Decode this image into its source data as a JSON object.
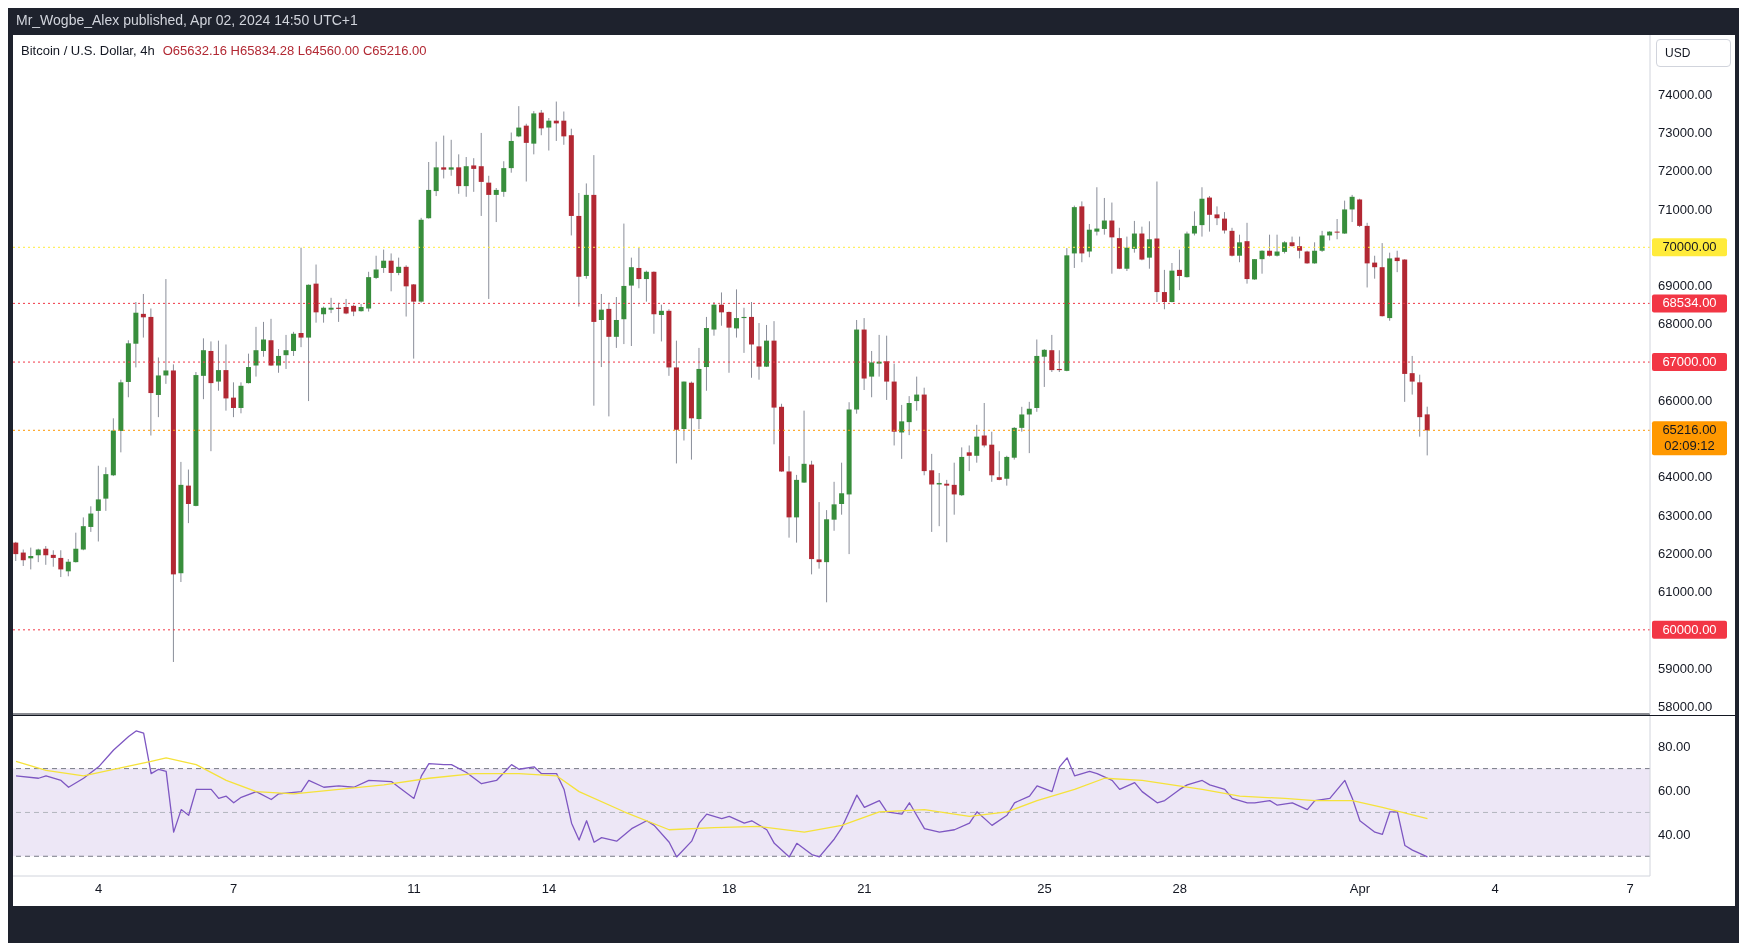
{
  "chart_data": [
    {
      "type": "candlestick",
      "title": "Bitcoin / U.S. Dollar, 4h",
      "annotations": [
        "Mr_Wogbe_Alex published, Apr 02, 2024 14:50 UTC+1",
        "O65632.16 H65834.28 L64560.00 C65216.00",
        "USD",
        "02:09:12"
      ],
      "x": [
        "2024-03-02T04:00",
        "2024-03-02T08:00",
        "2024-03-02T12:00",
        "2024-03-02T16:00",
        "2024-03-02T20:00",
        "2024-03-03T00:00",
        "2024-03-03T04:00",
        "2024-03-03T08:00",
        "2024-03-03T12:00",
        "2024-03-03T16:00",
        "2024-03-03T20:00",
        "2024-03-04T00:00",
        "2024-03-04T04:00",
        "2024-03-04T08:00",
        "2024-03-04T12:00",
        "2024-03-04T16:00",
        "2024-03-04T20:00",
        "2024-03-05T00:00",
        "2024-03-05T04:00",
        "2024-03-05T08:00",
        "2024-03-05T12:00",
        "2024-03-05T16:00",
        "2024-03-05T20:00",
        "2024-03-06T00:00",
        "2024-03-06T04:00",
        "2024-03-06T08:00",
        "2024-03-06T12:00",
        "2024-03-06T16:00",
        "2024-03-06T20:00",
        "2024-03-07T00:00",
        "2024-03-07T04:00",
        "2024-03-07T08:00",
        "2024-03-07T12:00",
        "2024-03-07T16:00",
        "2024-03-07T20:00",
        "2024-03-08T00:00",
        "2024-03-08T04:00",
        "2024-03-08T08:00",
        "2024-03-08T12:00",
        "2024-03-08T16:00",
        "2024-03-08T20:00",
        "2024-03-09T00:00",
        "2024-03-09T04:00",
        "2024-03-09T08:00",
        "2024-03-09T12:00",
        "2024-03-09T16:00",
        "2024-03-09T20:00",
        "2024-03-10T00:00",
        "2024-03-10T04:00",
        "2024-03-10T08:00",
        "2024-03-10T12:00",
        "2024-03-10T16:00",
        "2024-03-10T20:00",
        "2024-03-11T00:00",
        "2024-03-11T04:00",
        "2024-03-11T08:00",
        "2024-03-11T12:00",
        "2024-03-11T16:00",
        "2024-03-11T20:00",
        "2024-03-12T00:00",
        "2024-03-12T04:00",
        "2024-03-12T08:00",
        "2024-03-12T12:00",
        "2024-03-12T16:00",
        "2024-03-12T20:00",
        "2024-03-13T00:00",
        "2024-03-13T04:00",
        "2024-03-13T08:00",
        "2024-03-13T12:00",
        "2024-03-13T16:00",
        "2024-03-13T20:00",
        "2024-03-14T00:00",
        "2024-03-14T04:00",
        "2024-03-14T08:00",
        "2024-03-14T12:00",
        "2024-03-14T16:00",
        "2024-03-14T20:00",
        "2024-03-15T00:00",
        "2024-03-15T04:00",
        "2024-03-15T08:00",
        "2024-03-15T12:00",
        "2024-03-15T16:00",
        "2024-03-15T20:00",
        "2024-03-16T00:00",
        "2024-03-16T04:00",
        "2024-03-16T08:00",
        "2024-03-16T12:00",
        "2024-03-16T16:00",
        "2024-03-16T20:00",
        "2024-03-17T00:00",
        "2024-03-17T04:00",
        "2024-03-17T08:00",
        "2024-03-17T12:00",
        "2024-03-17T16:00",
        "2024-03-17T20:00",
        "2024-03-18T00:00",
        "2024-03-18T04:00",
        "2024-03-18T08:00",
        "2024-03-18T12:00",
        "2024-03-18T16:00",
        "2024-03-18T20:00",
        "2024-03-19T00:00",
        "2024-03-19T04:00",
        "2024-03-19T08:00",
        "2024-03-19T12:00",
        "2024-03-19T16:00",
        "2024-03-19T20:00",
        "2024-03-20T00:00",
        "2024-03-20T04:00",
        "2024-03-20T08:00",
        "2024-03-20T12:00",
        "2024-03-20T16:00",
        "2024-03-20T20:00",
        "2024-03-21T00:00",
        "2024-03-21T04:00",
        "2024-03-21T08:00",
        "2024-03-21T12:00",
        "2024-03-21T16:00",
        "2024-03-21T20:00",
        "2024-03-22T00:00",
        "2024-03-22T04:00",
        "2024-03-22T08:00",
        "2024-03-22T12:00",
        "2024-03-22T16:00",
        "2024-03-22T20:00",
        "2024-03-23T00:00",
        "2024-03-23T04:00",
        "2024-03-23T08:00",
        "2024-03-23T12:00",
        "2024-03-23T16:00",
        "2024-03-23T20:00",
        "2024-03-24T00:00",
        "2024-03-24T04:00",
        "2024-03-24T08:00",
        "2024-03-24T12:00",
        "2024-03-24T16:00",
        "2024-03-24T20:00",
        "2024-03-25T00:00",
        "2024-03-25T04:00",
        "2024-03-25T08:00",
        "2024-03-25T12:00",
        "2024-03-25T16:00",
        "2024-03-25T20:00",
        "2024-03-26T00:00",
        "2024-03-26T04:00",
        "2024-03-26T08:00",
        "2024-03-26T12:00",
        "2024-03-26T16:00",
        "2024-03-26T20:00",
        "2024-03-27T00:00",
        "2024-03-27T04:00",
        "2024-03-27T08:00",
        "2024-03-27T12:00",
        "2024-03-27T16:00",
        "2024-03-27T20:00",
        "2024-03-28T00:00",
        "2024-03-28T04:00",
        "2024-03-28T08:00",
        "2024-03-28T12:00",
        "2024-03-28T16:00",
        "2024-03-28T20:00",
        "2024-03-29T00:00",
        "2024-03-29T04:00",
        "2024-03-29T08:00",
        "2024-03-29T12:00",
        "2024-03-29T16:00",
        "2024-03-29T20:00",
        "2024-03-30T00:00",
        "2024-03-30T04:00",
        "2024-03-30T08:00",
        "2024-03-30T12:00",
        "2024-03-30T16:00",
        "2024-03-30T20:00",
        "2024-03-31T00:00",
        "2024-03-31T04:00",
        "2024-03-31T08:00",
        "2024-03-31T12:00",
        "2024-03-31T16:00",
        "2024-03-31T20:00",
        "2024-04-01T00:00",
        "2024-04-01T04:00",
        "2024-04-01T08:00",
        "2024-04-01T12:00",
        "2024-04-01T16:00",
        "2024-04-01T20:00",
        "2024-04-02T00:00",
        "2024-04-02T04:00",
        "2024-04-02T08:00",
        "2024-04-02T12:00"
      ],
      "ohlc": [
        [
          62280,
          62300,
          61800,
          61980
        ],
        [
          62020,
          62100,
          61670,
          61820
        ],
        [
          61870,
          62150,
          61580,
          61930
        ],
        [
          61950,
          62120,
          61770,
          62100
        ],
        [
          62120,
          62190,
          61700,
          61950
        ],
        [
          61960,
          62080,
          61650,
          61880
        ],
        [
          61880,
          62080,
          61380,
          61580
        ],
        [
          61530,
          61850,
          61400,
          61780
        ],
        [
          61770,
          62540,
          61760,
          62120
        ],
        [
          62100,
          62940,
          62080,
          62710
        ],
        [
          62690,
          63230,
          62560,
          63040
        ],
        [
          63110,
          64290,
          62310,
          63410
        ],
        [
          63430,
          64250,
          63110,
          64070
        ],
        [
          64040,
          65530,
          64020,
          65210
        ],
        [
          65200,
          66540,
          64640,
          66470
        ],
        [
          66480,
          67570,
          66080,
          67490
        ],
        [
          67480,
          68570,
          66860,
          68290
        ],
        [
          68260,
          68780,
          67640,
          68170
        ],
        [
          68180,
          68400,
          65080,
          66190
        ],
        [
          66140,
          67120,
          65560,
          66650
        ],
        [
          66650,
          69170,
          66430,
          66780
        ],
        [
          66780,
          66940,
          59160,
          61450
        ],
        [
          61480,
          64390,
          61250,
          63790
        ],
        [
          63770,
          64190,
          62790,
          63290
        ],
        [
          63240,
          66740,
          63230,
          66660
        ],
        [
          66640,
          67620,
          66030,
          67310
        ],
        [
          67290,
          67540,
          64670,
          66450
        ],
        [
          66490,
          67560,
          66250,
          66790
        ],
        [
          66790,
          67460,
          65730,
          66050
        ],
        [
          66070,
          66470,
          65560,
          65800
        ],
        [
          65800,
          66470,
          65660,
          66380
        ],
        [
          66450,
          67220,
          66440,
          66870
        ],
        [
          66910,
          67920,
          66620,
          67310
        ],
        [
          67290,
          68050,
          67140,
          67590
        ],
        [
          67570,
          68130,
          66900,
          66910
        ],
        [
          66910,
          67340,
          66720,
          67160
        ],
        [
          67180,
          67710,
          66820,
          67310
        ],
        [
          67290,
          67790,
          67160,
          67740
        ],
        [
          67760,
          69990,
          67390,
          67640
        ],
        [
          67640,
          69030,
          65980,
          69020
        ],
        [
          69050,
          69550,
          68030,
          68300
        ],
        [
          68250,
          68450,
          68030,
          68420
        ],
        [
          68370,
          68680,
          68280,
          68420
        ],
        [
          68420,
          68550,
          68050,
          68390
        ],
        [
          68440,
          68650,
          68250,
          68270
        ],
        [
          68470,
          68500,
          68200,
          68320
        ],
        [
          68330,
          68520,
          68320,
          68440
        ],
        [
          68400,
          69360,
          68320,
          69220
        ],
        [
          69200,
          69780,
          69170,
          69420
        ],
        [
          69460,
          69940,
          69330,
          69650
        ],
        [
          69650,
          69840,
          68850,
          69330
        ],
        [
          69330,
          69730,
          69270,
          69490
        ],
        [
          69490,
          69530,
          68190,
          68980
        ],
        [
          69030,
          69040,
          67090,
          68580
        ],
        [
          68580,
          70770,
          68550,
          70720
        ],
        [
          70760,
          72230,
          70750,
          71500
        ],
        [
          71470,
          72760,
          71340,
          72090
        ],
        [
          72090,
          72920,
          71800,
          72030
        ],
        [
          72030,
          72810,
          71870,
          72090
        ],
        [
          72090,
          72430,
          71400,
          71600
        ],
        [
          71600,
          72360,
          71320,
          72120
        ],
        [
          72140,
          72330,
          71450,
          72050
        ],
        [
          72120,
          72990,
          70820,
          71710
        ],
        [
          71690,
          71870,
          68650,
          71370
        ],
        [
          71370,
          71550,
          70660,
          71500
        ],
        [
          71450,
          72250,
          71320,
          72070
        ],
        [
          72070,
          73000,
          71950,
          72780
        ],
        [
          72900,
          73690,
          72880,
          73130
        ],
        [
          73180,
          73230,
          71720,
          72730
        ],
        [
          72710,
          73560,
          72430,
          73500
        ],
        [
          73520,
          73590,
          72930,
          73110
        ],
        [
          73130,
          73380,
          72530,
          73310
        ],
        [
          73310,
          73810,
          72780,
          73240
        ],
        [
          73310,
          73550,
          72680,
          72900
        ],
        [
          72930,
          73100,
          70310,
          70820
        ],
        [
          70820,
          71420,
          68450,
          69230
        ],
        [
          69250,
          71670,
          69180,
          71370
        ],
        [
          71370,
          72410,
          65860,
          68050
        ],
        [
          68100,
          68780,
          66870,
          68370
        ],
        [
          68390,
          68550,
          65580,
          67660
        ],
        [
          67660,
          68700,
          67370,
          68100
        ],
        [
          68120,
          70620,
          67470,
          68990
        ],
        [
          69000,
          69730,
          67420,
          69480
        ],
        [
          69460,
          69990,
          68930,
          69170
        ],
        [
          69170,
          69390,
          68580,
          69360
        ],
        [
          69360,
          69370,
          67740,
          68250
        ],
        [
          68230,
          68500,
          67540,
          68340
        ],
        [
          68340,
          68380,
          66640,
          66860
        ],
        [
          66860,
          67560,
          64350,
          65230
        ],
        [
          65250,
          66490,
          64950,
          66490
        ],
        [
          66460,
          66490,
          64450,
          65530
        ],
        [
          65510,
          67370,
          65250,
          66820
        ],
        [
          66870,
          68180,
          66250,
          67890
        ],
        [
          67850,
          68570,
          67690,
          68500
        ],
        [
          68500,
          68820,
          67950,
          68300
        ],
        [
          68310,
          68320,
          66720,
          67900
        ],
        [
          67880,
          68900,
          67640,
          68150
        ],
        [
          68150,
          68420,
          67240,
          68180
        ],
        [
          68180,
          68570,
          66590,
          67460
        ],
        [
          67410,
          68020,
          66540,
          66880
        ],
        [
          66880,
          67970,
          66870,
          67560
        ],
        [
          67560,
          68070,
          64850,
          65810
        ],
        [
          65830,
          65910,
          64130,
          64140
        ],
        [
          64140,
          64540,
          62410,
          62940
        ],
        [
          62940,
          64050,
          62280,
          63920
        ],
        [
          63850,
          65730,
          63840,
          64340
        ],
        [
          64320,
          64420,
          61450,
          61850
        ],
        [
          61840,
          63340,
          61600,
          61770
        ],
        [
          61770,
          63130,
          60720,
          62890
        ],
        [
          62880,
          63870,
          62590,
          63280
        ],
        [
          63290,
          64370,
          63010,
          63570
        ],
        [
          63540,
          65950,
          61980,
          65760
        ],
        [
          65760,
          68100,
          65650,
          67850
        ],
        [
          67850,
          68150,
          66270,
          66570
        ],
        [
          66620,
          67290,
          66080,
          66990
        ],
        [
          66960,
          67710,
          66620,
          67010
        ],
        [
          67020,
          67690,
          66010,
          66490
        ],
        [
          66490,
          66960,
          64820,
          65180
        ],
        [
          65160,
          65880,
          64470,
          65450
        ],
        [
          65430,
          66110,
          65090,
          65930
        ],
        [
          65980,
          66620,
          65730,
          66150
        ],
        [
          66150,
          66330,
          64040,
          64150
        ],
        [
          64170,
          64600,
          62560,
          63800
        ],
        [
          63800,
          64100,
          62710,
          63840
        ],
        [
          63820,
          63920,
          62290,
          63770
        ],
        [
          63790,
          64370,
          63010,
          63540
        ],
        [
          63520,
          64770,
          63500,
          64520
        ],
        [
          64640,
          64820,
          64150,
          64550
        ],
        [
          64550,
          65360,
          64370,
          65050
        ],
        [
          65080,
          65930,
          64770,
          64820
        ],
        [
          64840,
          65180,
          63870,
          64040
        ],
        [
          63990,
          64670,
          63910,
          63920
        ],
        [
          63950,
          64550,
          63770,
          64520
        ],
        [
          64500,
          65300,
          64450,
          65280
        ],
        [
          65280,
          65830,
          65180,
          65630
        ],
        [
          65630,
          65960,
          64620,
          65780
        ],
        [
          65800,
          67590,
          65700,
          67160
        ],
        [
          67140,
          67340,
          66350,
          67320
        ],
        [
          67310,
          67710,
          66740,
          66790
        ],
        [
          66820,
          67310,
          66740,
          66790
        ],
        [
          66770,
          69980,
          66760,
          69790
        ],
        [
          69840,
          71090,
          69460,
          71050
        ],
        [
          71070,
          71200,
          69610,
          69840
        ],
        [
          69890,
          70610,
          69740,
          70460
        ],
        [
          70410,
          71570,
          70310,
          70490
        ],
        [
          70480,
          71290,
          70330,
          70700
        ],
        [
          70700,
          71170,
          69310,
          70260
        ],
        [
          70240,
          70510,
          69430,
          69440
        ],
        [
          69440,
          70280,
          69380,
          69990
        ],
        [
          69960,
          70690,
          69860,
          70360
        ],
        [
          70360,
          70540,
          69660,
          69680
        ],
        [
          69730,
          70680,
          69440,
          70210
        ],
        [
          70230,
          71720,
          68570,
          68830
        ],
        [
          68830,
          69410,
          68380,
          68570
        ],
        [
          68570,
          69590,
          68560,
          69390
        ],
        [
          69410,
          69940,
          68880,
          69250
        ],
        [
          69220,
          70410,
          69210,
          70360
        ],
        [
          70360,
          70940,
          70310,
          70560
        ],
        [
          70580,
          71570,
          70280,
          71270
        ],
        [
          71300,
          71340,
          70410,
          70850
        ],
        [
          70860,
          71070,
          70580,
          70760
        ],
        [
          70750,
          70920,
          70360,
          70440
        ],
        [
          70430,
          70510,
          69760,
          69780
        ],
        [
          69780,
          70330,
          69610,
          70130
        ],
        [
          70160,
          70640,
          69050,
          69170
        ],
        [
          69160,
          69690,
          69150,
          69690
        ],
        [
          69690,
          69920,
          69310,
          69910
        ],
        [
          69910,
          70330,
          69760,
          69780
        ],
        [
          69780,
          70330,
          69760,
          69890
        ],
        [
          69880,
          70160,
          69840,
          70130
        ],
        [
          70130,
          70280,
          70020,
          70030
        ],
        [
          70030,
          70280,
          69710,
          69910
        ],
        [
          69890,
          69910,
          69570,
          69580
        ],
        [
          69580,
          70130,
          69570,
          69910
        ],
        [
          69910,
          70430,
          69880,
          70310
        ],
        [
          70310,
          70420,
          70180,
          70410
        ],
        [
          70410,
          70740,
          70210,
          70390
        ],
        [
          70360,
          71220,
          70350,
          70990
        ],
        [
          70990,
          71370,
          70660,
          71320
        ],
        [
          71250,
          71270,
          70530,
          70560
        ],
        [
          70560,
          70640,
          68950,
          69580
        ],
        [
          69600,
          69780,
          69180,
          69480
        ],
        [
          69480,
          70110,
          68190,
          68200
        ],
        [
          68150,
          69860,
          68080,
          69710
        ],
        [
          69730,
          69910,
          69350,
          69640
        ],
        [
          69680,
          69690,
          65960,
          66690
        ],
        [
          66710,
          67160,
          66150,
          66490
        ],
        [
          66470,
          66670,
          65050,
          65560
        ],
        [
          65632.16,
          65834.28,
          64560,
          65216
        ]
      ],
      "xlim": [
        "2024-03-02T02:24",
        "2024-04-07T10:34"
      ],
      "ylim": [
        57800,
        75550
      ],
      "yticks": [
        {
          "value": 58000,
          "label": "58000.00"
        },
        {
          "value": 59000,
          "label": "59000.00"
        },
        {
          "value": 61000,
          "label": "61000.00"
        },
        {
          "value": 62000,
          "label": "62000.00"
        },
        {
          "value": 63000,
          "label": "63000.00"
        },
        {
          "value": 64000,
          "label": "64000.00"
        },
        {
          "value": 66000,
          "label": "66000.00"
        },
        {
          "value": 68000,
          "label": "68000.00"
        },
        {
          "value": 69000,
          "label": "69000.00"
        },
        {
          "value": 71000,
          "label": "71000.00"
        },
        {
          "value": 72000,
          "label": "72000.00"
        },
        {
          "value": 73000,
          "label": "73000.00"
        },
        {
          "value": 74000,
          "label": "74000.00"
        }
      ],
      "tick_labels": "y",
      "ref_lines": [
        {
          "axis": "y",
          "value": 70000,
          "label": "70000.00",
          "color": "#ffeb3b",
          "line_style": "dotted"
        },
        {
          "axis": "y",
          "value": 68534,
          "label": "68534.00",
          "color": "#f23645",
          "line_style": "dotted"
        },
        {
          "axis": "y",
          "value": 67000,
          "label": "67000.00",
          "color": "#f23645",
          "line_style": "dotted"
        },
        {
          "axis": "y",
          "value": 65216,
          "label": "65216.00",
          "color": "#ff9800",
          "line_style": "dotted"
        },
        {
          "axis": "y",
          "value": 60000,
          "label": "60000.00",
          "color": "#f23645",
          "line_style": "dotted"
        }
      ]
    },
    {
      "type": "line",
      "series": [
        {
          "color": "#7e57c2",
          "x": [
            "2024-03-02T04:00",
            "2024-03-02T16:00",
            "2024-03-02T20:00",
            "2024-03-03T04:00",
            "2024-03-03T08:00",
            "2024-03-03T16:00",
            "2024-03-04T00:00",
            "2024-03-04T08:00",
            "2024-03-04T16:00",
            "2024-03-04T20:00",
            "2024-03-05T00:00",
            "2024-03-05T04:00",
            "2024-03-05T08:00",
            "2024-03-05T12:00",
            "2024-03-05T16:00",
            "2024-03-05T20:00",
            "2024-03-06T00:00",
            "2024-03-06T04:00",
            "2024-03-06T12:00",
            "2024-03-06T16:00",
            "2024-03-06T20:00",
            "2024-03-07T00:00",
            "2024-03-07T04:00",
            "2024-03-07T12:00",
            "2024-03-07T20:00",
            "2024-03-08T00:00",
            "2024-03-08T12:00",
            "2024-03-08T16:00",
            "2024-03-09T00:00",
            "2024-03-09T08:00",
            "2024-03-09T16:00",
            "2024-03-10T00:00",
            "2024-03-10T12:00",
            "2024-03-10T16:00",
            "2024-03-11T00:00",
            "2024-03-11T04:00",
            "2024-03-11T08:00",
            "2024-03-11T16:00",
            "2024-03-11T20:00",
            "2024-03-12T04:00",
            "2024-03-12T12:00",
            "2024-03-12T20:00",
            "2024-03-13T04:00",
            "2024-03-13T08:00",
            "2024-03-13T16:00",
            "2024-03-13T20:00",
            "2024-03-14T04:00",
            "2024-03-14T08:00",
            "2024-03-14T12:00",
            "2024-03-14T16:00",
            "2024-03-14T20:00",
            "2024-03-15T00:00",
            "2024-03-15T04:00",
            "2024-03-15T12:00",
            "2024-03-15T20:00",
            "2024-03-16T04:00",
            "2024-03-16T08:00",
            "2024-03-16T16:00",
            "2024-03-16T20:00",
            "2024-03-17T04:00",
            "2024-03-17T08:00",
            "2024-03-17T12:00",
            "2024-03-17T20:00",
            "2024-03-18T00:00",
            "2024-03-18T08:00",
            "2024-03-18T12:00",
            "2024-03-18T20:00",
            "2024-03-19T00:00",
            "2024-03-19T08:00",
            "2024-03-19T12:00",
            "2024-03-19T20:00",
            "2024-03-20T00:00",
            "2024-03-20T08:00",
            "2024-03-20T12:00",
            "2024-03-20T20:00",
            "2024-03-21T00:00",
            "2024-03-21T08:00",
            "2024-03-21T12:00",
            "2024-03-21T20:00",
            "2024-03-22T00:00",
            "2024-03-22T08:00",
            "2024-03-22T16:00",
            "2024-03-23T00:00",
            "2024-03-23T08:00",
            "2024-03-23T12:00",
            "2024-03-23T20:00",
            "2024-03-24T04:00",
            "2024-03-24T08:00",
            "2024-03-24T16:00",
            "2024-03-24T20:00",
            "2024-03-25T04:00",
            "2024-03-25T08:00",
            "2024-03-25T12:00",
            "2024-03-25T16:00",
            "2024-03-26T00:00",
            "2024-03-26T04:00",
            "2024-03-26T12:00",
            "2024-03-26T16:00",
            "2024-03-27T00:00",
            "2024-03-27T04:00",
            "2024-03-27T12:00",
            "2024-03-27T16:00",
            "2024-03-28T00:00",
            "2024-03-28T04:00",
            "2024-03-28T12:00",
            "2024-03-28T16:00",
            "2024-03-29T00:00",
            "2024-03-29T04:00",
            "2024-03-29T12:00",
            "2024-03-29T16:00",
            "2024-03-30T00:00",
            "2024-03-30T04:00",
            "2024-03-30T12:00",
            "2024-03-30T20:00",
            "2024-03-31T00:00",
            "2024-03-31T08:00",
            "2024-03-31T16:00",
            "2024-03-31T20:00",
            "2024-04-01T00:00",
            "2024-04-01T08:00",
            "2024-04-01T12:00",
            "2024-04-01T16:00",
            "2024-04-01T20:00",
            "2024-04-02T00:00",
            "2024-04-02T04:00",
            "2024-04-02T12:00"
          ],
          "values": [
            66.7,
            65.6,
            66.7,
            64.6,
            61.5,
            65.6,
            70.8,
            78.5,
            84.6,
            87.2,
            86.2,
            67.7,
            69.7,
            68.7,
            41,
            51.3,
            48.7,
            60.5,
            60.5,
            56.4,
            57.4,
            54.4,
            56.9,
            59.5,
            55.9,
            58.5,
            59.5,
            64.6,
            61.5,
            62.1,
            61.5,
            64.6,
            64.1,
            61.5,
            56.4,
            66.7,
            72.3,
            71.8,
            71.8,
            68.2,
            63.1,
            64.6,
            71.8,
            69.7,
            70.8,
            67.7,
            67.7,
            60.5,
            45.1,
            37.4,
            46.2,
            36.4,
            38.5,
            36.9,
            42.6,
            46.2,
            44.1,
            36.4,
            29.7,
            36.9,
            45.1,
            49.2,
            47.2,
            48.2,
            45.1,
            46.2,
            42.1,
            35.9,
            29.7,
            35.9,
            30.8,
            29.7,
            37.9,
            43.1,
            57.9,
            52.3,
            55.4,
            50.3,
            49.2,
            54.4,
            42.6,
            41,
            42.1,
            45.1,
            50.3,
            44.1,
            48.7,
            54.4,
            57.4,
            62.1,
            59.5,
            70.8,
            74.9,
            66.7,
            68.7,
            67.7,
            64.6,
            60.5,
            63.6,
            59.5,
            54.4,
            55.4,
            60.5,
            62.6,
            64.6,
            62.6,
            60.5,
            56.4,
            54.4,
            54.4,
            55.4,
            53.3,
            54.4,
            51.3,
            55.4,
            56.4,
            64.6,
            56.4,
            46.2,
            41,
            40,
            50.3,
            50.3,
            34.9,
            32.8,
            29.7
          ]
        },
        {
          "color": "#f5e23a",
          "x": [
            "2024-03-02T04:00",
            "2024-03-02T20:00",
            "2024-03-03T16:00",
            "2024-03-04T08:00",
            "2024-03-05T04:00",
            "2024-03-05T12:00",
            "2024-03-06T04:00",
            "2024-03-06T20:00",
            "2024-03-07T12:00",
            "2024-03-08T08:00",
            "2024-03-09T08:00",
            "2024-03-10T08:00",
            "2024-03-11T08:00",
            "2024-03-12T08:00",
            "2024-03-13T08:00",
            "2024-03-14T04:00",
            "2024-03-14T16:00",
            "2024-03-15T16:00",
            "2024-03-16T16:00",
            "2024-03-17T16:00",
            "2024-03-18T16:00",
            "2024-03-19T16:00",
            "2024-03-20T12:00",
            "2024-03-21T08:00",
            "2024-03-22T08:00",
            "2024-03-23T08:00",
            "2024-03-24T04:00",
            "2024-03-24T20:00",
            "2024-03-25T16:00",
            "2024-03-26T08:00",
            "2024-03-27T04:00",
            "2024-03-27T20:00",
            "2024-03-28T12:00",
            "2024-03-29T08:00",
            "2024-03-30T08:00",
            "2024-03-31T00:00",
            "2024-03-31T20:00",
            "2024-04-01T12:00",
            "2024-04-02T12:00"
          ],
          "values": [
            73.3,
            69.2,
            66.7,
            69.7,
            73.3,
            74.9,
            71.8,
            64.6,
            59.5,
            58.5,
            60.5,
            62.6,
            65.6,
            67.7,
            67.7,
            66.7,
            59.5,
            50.3,
            42.1,
            43.1,
            43.6,
            41,
            44.1,
            50.3,
            51.3,
            48.2,
            50.3,
            55.4,
            60.5,
            65.6,
            64.6,
            62.6,
            60.5,
            57.4,
            56.4,
            55.4,
            55.4,
            52.3,
            47.2
          ]
        }
      ],
      "xlim": [
        "2024-03-02T02:24",
        "2024-04-07T10:34"
      ],
      "xticks": [
        {
          "value": "2024-03-04",
          "label": "4"
        },
        {
          "value": "2024-03-07",
          "label": "7"
        },
        {
          "value": "2024-03-11",
          "label": "11"
        },
        {
          "value": "2024-03-14",
          "label": "14"
        },
        {
          "value": "2024-03-18",
          "label": "18"
        },
        {
          "value": "2024-03-21",
          "label": "21"
        },
        {
          "value": "2024-03-25",
          "label": "25"
        },
        {
          "value": "2024-03-28",
          "label": "28"
        },
        {
          "value": "2024-04-01",
          "label": "Apr"
        },
        {
          "value": "2024-04-04",
          "label": "4"
        },
        {
          "value": "2024-04-07",
          "label": "7"
        }
      ],
      "ylim": [
        21,
        94
      ],
      "yticks": [
        {
          "value": 40,
          "label": "40.00"
        },
        {
          "value": 60,
          "label": "60.00"
        },
        {
          "value": 80,
          "label": "80.00"
        }
      ],
      "bands": [
        {
          "axis": "y",
          "from": 30,
          "to": 70,
          "color": "#ede7f6"
        }
      ],
      "ref_lines": [
        {
          "axis": "y",
          "value": 70,
          "color": "#787b86",
          "line_style": "dashed"
        },
        {
          "axis": "y",
          "value": 50,
          "color": "#b2b5be",
          "line_style": "dashed"
        },
        {
          "axis": "y",
          "value": 30,
          "color": "#787b86",
          "line_style": "dashed"
        }
      ],
      "line_style": "solid",
      "marker": "none"
    }
  ]
}
